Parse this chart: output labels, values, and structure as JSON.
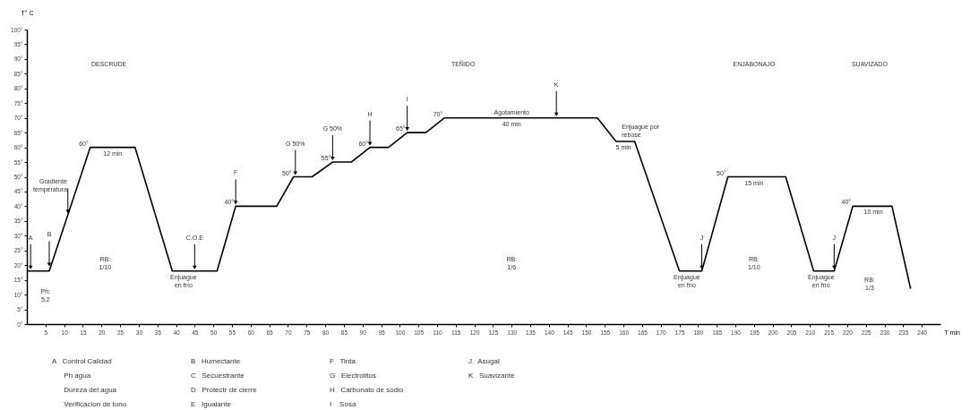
{
  "chart_data": {
    "type": "line",
    "xlabel": "T min",
    "ylabel": "T° C",
    "x": [
      0,
      6,
      17,
      29,
      39,
      51,
      56,
      67,
      71.5,
      76.5,
      82,
      87,
      92,
      97,
      102,
      107,
      112,
      153,
      158,
      163,
      175,
      181,
      188,
      203.5,
      211,
      216.5,
      221.5,
      232,
      237
    ],
    "series": [
      {
        "color": "#000000",
        "values": [
          18,
          18,
          60,
          60,
          18,
          18,
          40,
          40,
          50,
          50,
          55,
          55,
          60,
          60,
          65,
          65,
          70,
          70,
          62,
          62,
          18,
          18,
          50,
          50,
          18,
          18,
          40,
          40,
          12
        ]
      }
    ],
    "xlim": [
      0,
      245
    ],
    "xticks": [
      5,
      10,
      15,
      20,
      25,
      30,
      35,
      40,
      45,
      50,
      55,
      60,
      65,
      70,
      75,
      80,
      85,
      90,
      95,
      100,
      105,
      110,
      115,
      120,
      125,
      130,
      135,
      140,
      145,
      150,
      155,
      160,
      165,
      170,
      175,
      180,
      185,
      190,
      195,
      200,
      205,
      210,
      215,
      220,
      225,
      230,
      235,
      240
    ],
    "ylim": [
      0,
      100
    ],
    "yticks": [
      {
        "value": 0,
        "label": "0°"
      },
      {
        "value": 5,
        "label": "5°"
      },
      {
        "value": 10,
        "label": "10°"
      },
      {
        "value": 15,
        "label": "15°"
      },
      {
        "value": 20,
        "label": "20°"
      },
      {
        "value": 25,
        "label": "25°"
      },
      {
        "value": 30,
        "label": "30°"
      },
      {
        "value": 35,
        "label": "35°"
      },
      {
        "value": 40,
        "label": "40°"
      },
      {
        "value": 45,
        "label": "45°"
      },
      {
        "value": 50,
        "label": "50°"
      },
      {
        "value": 55,
        "label": "55°"
      },
      {
        "value": 60,
        "label": "60°"
      },
      {
        "value": 65,
        "label": "65°"
      },
      {
        "value": 70,
        "label": "70°"
      },
      {
        "value": 75,
        "label": "75°"
      },
      {
        "value": 80,
        "label": "80°"
      },
      {
        "value": 85,
        "label": "85°"
      },
      {
        "value": 90,
        "label": "90°"
      },
      {
        "value": 95,
        "label": "95°"
      },
      {
        "value": 100,
        "label": "100°"
      }
    ],
    "grid": false,
    "marker": "none",
    "line_style": "solid",
    "annotations": [
      "DESCRUDE",
      "TEÑIDO",
      "ENJABONAJO",
      "SUAVIZADO",
      "RB:\n1/10",
      "Ph:\n5,2",
      "RB:\n1/6",
      "RB:\n1/10",
      "RB:\n1/3",
      {
        "text": "A",
        "x": 1,
        "y": 18
      },
      {
        "text": "B",
        "x": 6,
        "y": 19
      },
      {
        "text": "Gradiente\ntemperatura",
        "x": 11,
        "y": 37
      },
      {
        "text": "60°",
        "x": 17,
        "y": 60
      },
      {
        "text": "12 min",
        "x": 23,
        "y": 60
      },
      {
        "text": "C.O.E",
        "x": 45,
        "y": 18
      },
      {
        "text": "Enjuague\nen frío",
        "x": 42,
        "y": 18
      },
      {
        "text": "F",
        "x": 56,
        "y": 40
      },
      {
        "text": "40°",
        "x": 56,
        "y": 40
      },
      {
        "text": "G 50%",
        "x": 72,
        "y": 50
      },
      {
        "text": "50°",
        "x": 71.5,
        "y": 50
      },
      {
        "text": "G 50%",
        "x": 82,
        "y": 55
      },
      {
        "text": "55°",
        "x": 82,
        "y": 55
      },
      {
        "text": "H",
        "x": 92,
        "y": 60
      },
      {
        "text": "60°",
        "x": 92,
        "y": 60
      },
      {
        "text": "I",
        "x": 102,
        "y": 65
      },
      {
        "text": "65°",
        "x": 102,
        "y": 65
      },
      {
        "text": "70°",
        "x": 112,
        "y": 70
      },
      {
        "text": "Agotamiento",
        "x": 130,
        "y": 70
      },
      {
        "text": "40 min",
        "x": 130,
        "y": 70
      },
      {
        "text": "K",
        "x": 142,
        "y": 70
      },
      {
        "text": "Enjuague por\nrebose",
        "x": 161,
        "y": 62
      },
      {
        "text": "5 min",
        "x": 160,
        "y": 62
      },
      {
        "text": "Enjuague\nen frío",
        "x": 177,
        "y": 18
      },
      {
        "text": "J",
        "x": 181,
        "y": 18
      },
      {
        "text": "50°",
        "x": 188,
        "y": 50
      },
      {
        "text": "15 min",
        "x": 195,
        "y": 50
      },
      {
        "text": "Enjuague\nen frío",
        "x": 213,
        "y": 18
      },
      {
        "text": "J",
        "x": 216.5,
        "y": 18
      },
      {
        "text": "40°",
        "x": 221.5,
        "y": 40
      },
      {
        "text": "10 min",
        "x": 227,
        "y": 40
      },
      "A   Control Calidad",
      "      Ph agua",
      "      Dureza del agua",
      "      Verificacion de tono",
      "B   Humectante",
      "C   Secuestrante",
      "D   Protectr de cierre",
      "E   Igualante",
      "F   Tinta",
      "G   Electrolitos",
      "H   Carbonato de sodio",
      "I    Sosa",
      "J   Asugal",
      "K   Suavizante"
    ]
  }
}
